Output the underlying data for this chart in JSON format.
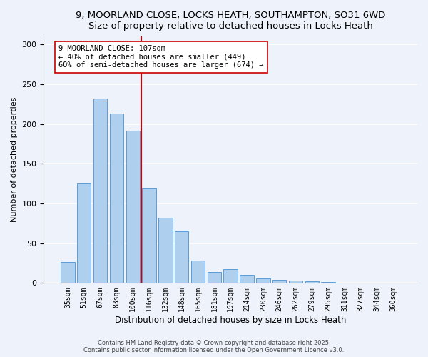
{
  "title": "9, MOORLAND CLOSE, LOCKS HEATH, SOUTHAMPTON, SO31 6WD",
  "subtitle": "Size of property relative to detached houses in Locks Heath",
  "xlabel": "Distribution of detached houses by size in Locks Heath",
  "ylabel": "Number of detached properties",
  "bar_color": "#aed0ee",
  "bar_edge_color": "#5b9bd5",
  "background_color": "#eef3fb",
  "grid_color": "#ffffff",
  "categories": [
    "35sqm",
    "51sqm",
    "67sqm",
    "83sqm",
    "100sqm",
    "116sqm",
    "132sqm",
    "148sqm",
    "165sqm",
    "181sqm",
    "197sqm",
    "214sqm",
    "230sqm",
    "246sqm",
    "262sqm",
    "279sqm",
    "295sqm",
    "311sqm",
    "327sqm",
    "344sqm",
    "360sqm"
  ],
  "values": [
    26,
    125,
    232,
    213,
    192,
    119,
    82,
    65,
    28,
    14,
    17,
    10,
    6,
    4,
    3,
    2,
    1,
    0,
    0,
    0,
    0
  ],
  "ylim": [
    0,
    310
  ],
  "yticks": [
    0,
    50,
    100,
    150,
    200,
    250,
    300
  ],
  "vline_x": 4.5,
  "vline_color": "#cc0000",
  "annotation_title": "9 MOORLAND CLOSE: 107sqm",
  "annotation_line1": "← 40% of detached houses are smaller (449)",
  "annotation_line2": "60% of semi-detached houses are larger (674) →",
  "annotation_box_color": "#ffffff",
  "annotation_box_edge": "#cc0000",
  "footer1": "Contains HM Land Registry data © Crown copyright and database right 2025.",
  "footer2": "Contains public sector information licensed under the Open Government Licence v3.0."
}
